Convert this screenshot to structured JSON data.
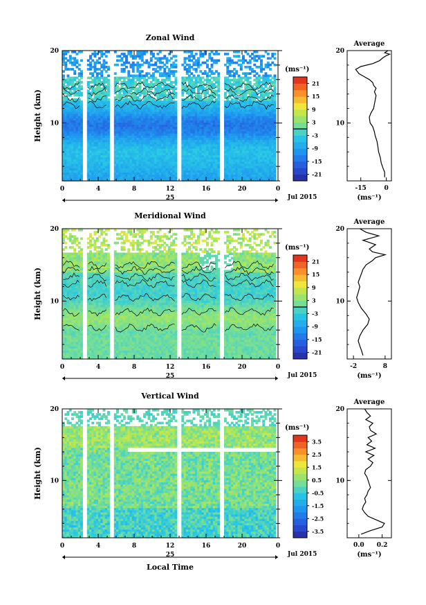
{
  "chart_data": [
    {
      "type": "heatmap",
      "title": "Zonal Wind",
      "ylabel": "Height (km)",
      "xlabel": "",
      "x_ticks": [
        "0",
        "4",
        "8",
        "12",
        "16",
        "20",
        "0"
      ],
      "y_ticks": [
        "10",
        "20"
      ],
      "xlim": [
        0,
        24
      ],
      "ylim": [
        2,
        20
      ],
      "date_label": "25",
      "month_label": "Jul 2015",
      "colorbar": {
        "unit": "(ms⁻¹)",
        "ticks": [
          "21",
          "15",
          "9",
          "3",
          "-3",
          "-9",
          "-15",
          "-21"
        ],
        "range": [
          -24,
          24
        ]
      },
      "average": {
        "title": "Average",
        "xlabel": "(ms⁻¹)",
        "x_ticks": [
          "-15",
          "0"
        ],
        "y_ticks": [
          "10",
          "20"
        ],
        "xlim": [
          -23,
          3
        ],
        "profile": [
          [
            -1,
            2.5
          ],
          [
            -1,
            3.2
          ],
          [
            -2,
            3.8
          ],
          [
            -3,
            4.5
          ],
          [
            -3.5,
            5.2
          ],
          [
            -4.5,
            6
          ],
          [
            -5,
            6.8
          ],
          [
            -5.5,
            7.5
          ],
          [
            -6.5,
            8.2
          ],
          [
            -7,
            8.8
          ],
          [
            -8,
            9.5
          ],
          [
            -9.5,
            10
          ],
          [
            -10,
            10.8
          ],
          [
            -9,
            11.4
          ],
          [
            -7.5,
            12
          ],
          [
            -7,
            12.6
          ],
          [
            -6.5,
            13.2
          ],
          [
            -6,
            13.8
          ],
          [
            -7,
            14.3
          ],
          [
            -6,
            14.8
          ],
          [
            -7.5,
            15.2
          ],
          [
            -8,
            15.6
          ],
          [
            -10,
            16
          ],
          [
            -13,
            16.4
          ],
          [
            -16,
            16.8
          ],
          [
            -18,
            17.4
          ],
          [
            -15,
            17.8
          ],
          [
            -8,
            18.2
          ],
          [
            -4,
            18.6
          ],
          [
            -2,
            19
          ],
          [
            0,
            19.3
          ],
          [
            2,
            19.5
          ],
          [
            -1,
            19.7
          ],
          [
            1,
            20
          ]
        ]
      },
      "fields": {
        "blank_columns": [
          2.4,
          5.4,
          12.9,
          17.6
        ]
      }
    },
    {
      "type": "heatmap",
      "title": "Meridional Wind",
      "ylabel": "Height (km)",
      "xlabel": "",
      "x_ticks": [
        "0",
        "4",
        "8",
        "12",
        "16",
        "20",
        "0"
      ],
      "y_ticks": [
        "10",
        "20"
      ],
      "xlim": [
        0,
        24
      ],
      "ylim": [
        2,
        20
      ],
      "date_label": "25",
      "month_label": "Jul 2015",
      "colorbar": {
        "unit": "(ms⁻¹)",
        "ticks": [
          "21",
          "15",
          "9",
          "3",
          "-3",
          "-9",
          "-15",
          "-21"
        ],
        "range": [
          -24,
          24
        ]
      },
      "average": {
        "title": "Average",
        "xlabel": "(ms⁻¹)",
        "x_ticks": [
          "-2",
          "8"
        ],
        "y_ticks": [
          "10",
          "20"
        ],
        "xlim": [
          -4,
          10
        ],
        "profile": [
          [
            1,
            2.5
          ],
          [
            0.5,
            3.2
          ],
          [
            0,
            3.8
          ],
          [
            -0.5,
            4.5
          ],
          [
            0,
            5.2
          ],
          [
            1,
            6
          ],
          [
            2.5,
            6.8
          ],
          [
            3,
            7.5
          ],
          [
            2,
            8.2
          ],
          [
            0.5,
            9
          ],
          [
            -0.5,
            9.8
          ],
          [
            -1,
            10.5
          ],
          [
            -0.5,
            11.2
          ],
          [
            0,
            12
          ],
          [
            -0.5,
            12.6
          ],
          [
            0,
            13.2
          ],
          [
            0.5,
            13.8
          ],
          [
            1,
            14.4
          ],
          [
            2,
            15
          ],
          [
            4,
            15.6
          ],
          [
            5,
            16
          ],
          [
            8,
            16.4
          ],
          [
            4,
            16.8
          ],
          [
            3,
            17.2
          ],
          [
            5,
            17.8
          ],
          [
            1,
            18.4
          ],
          [
            6,
            19
          ],
          [
            2,
            19.5
          ],
          [
            0,
            20
          ]
        ]
      },
      "fields": {
        "blank_columns": [
          2.4,
          5.4,
          12.9,
          17.6
        ]
      }
    },
    {
      "type": "heatmap",
      "title": "Vertical Wind",
      "ylabel": "Height (km)",
      "xlabel": "Local Time",
      "x_ticks": [
        "0",
        "4",
        "8",
        "12",
        "16",
        "20",
        "0"
      ],
      "y_ticks": [
        "10",
        "20"
      ],
      "xlim": [
        0,
        24
      ],
      "ylim": [
        2,
        20
      ],
      "date_label": "25",
      "month_label": "Jul 2015",
      "colorbar": {
        "unit": "(ms⁻¹)",
        "ticks": [
          "3.5",
          "2.5",
          "1.5",
          "0.5",
          "-0.5",
          "-1.5",
          "-2.5",
          "-3.5"
        ],
        "range": [
          -4,
          4
        ]
      },
      "average": {
        "title": "Average",
        "xlabel": "(ms⁻¹)",
        "x_ticks": [
          "0.0",
          "0.2"
        ],
        "y_ticks": [
          "10",
          "20"
        ],
        "xlim": [
          -0.1,
          0.28
        ],
        "profile": [
          [
            0.02,
            2.5
          ],
          [
            0.1,
            3
          ],
          [
            0.2,
            3.5
          ],
          [
            0.22,
            4
          ],
          [
            0.15,
            4.5
          ],
          [
            0.08,
            5
          ],
          [
            0.05,
            5.5
          ],
          [
            0.03,
            6
          ],
          [
            0.04,
            6.5
          ],
          [
            0.06,
            7
          ],
          [
            0.05,
            7.5
          ],
          [
            0.07,
            8
          ],
          [
            0.08,
            8.5
          ],
          [
            0.1,
            9
          ],
          [
            0.09,
            9.5
          ],
          [
            0.08,
            10
          ],
          [
            0.07,
            10.5
          ],
          [
            0.05,
            11
          ],
          [
            0.06,
            11.5
          ],
          [
            0.1,
            12
          ],
          [
            0.12,
            12.5
          ],
          [
            0.08,
            13
          ],
          [
            0.13,
            13.5
          ],
          [
            0.06,
            14
          ],
          [
            0.14,
            14.5
          ],
          [
            0.07,
            15
          ],
          [
            0.11,
            15.5
          ],
          [
            0.08,
            16
          ],
          [
            0.15,
            16.5
          ],
          [
            0.1,
            17
          ],
          [
            0.09,
            17.5
          ],
          [
            0.12,
            18
          ],
          [
            0.06,
            18.5
          ],
          [
            0.1,
            19
          ],
          [
            0.07,
            19.5
          ],
          [
            0.05,
            20
          ]
        ]
      },
      "fields": {
        "blank_columns": [
          2.4,
          5.4,
          12.9,
          17.6
        ]
      }
    }
  ]
}
